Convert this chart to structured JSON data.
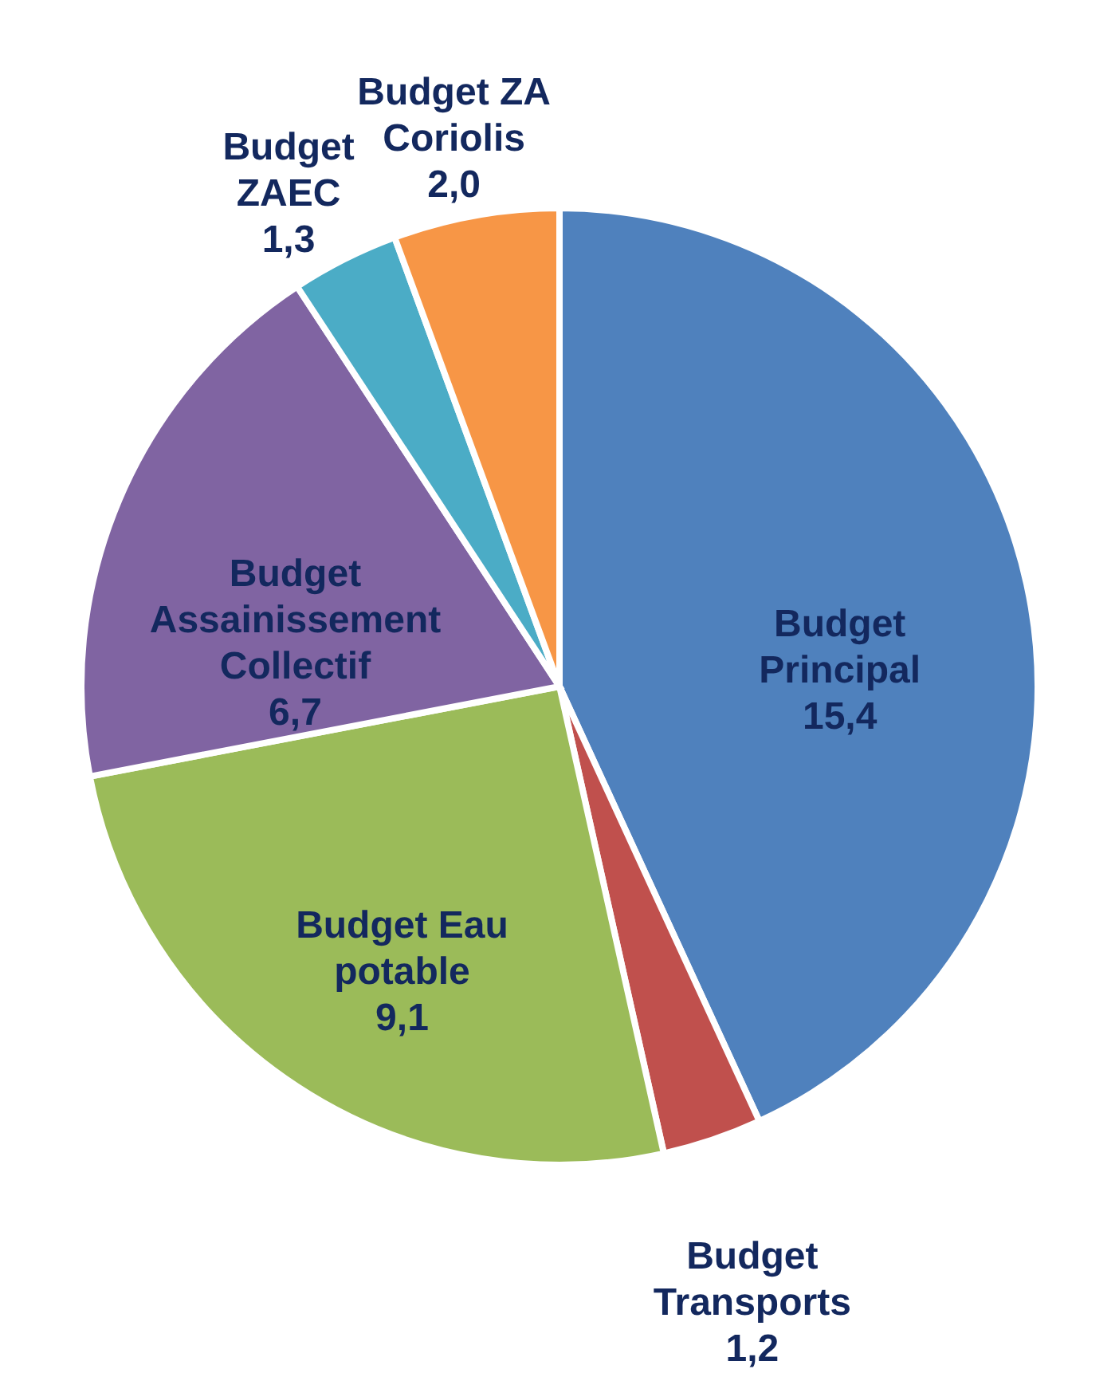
{
  "chart_data": {
    "type": "pie",
    "categories": [
      "Budget Principal",
      "Budget Transports",
      "Budget Eau potable",
      "Budget Assainissement Collectif",
      "Budget ZAEC",
      "Budget ZA Coriolis"
    ],
    "values": [
      15.4,
      1.2,
      9.1,
      6.7,
      1.3,
      2.0
    ],
    "value_labels": [
      "15,4",
      "1,2",
      "9,1",
      "6,7",
      "1,3",
      "2,0"
    ],
    "colors": [
      "#4f81bd",
      "#c0504d",
      "#9bbb59",
      "#8064a2",
      "#4bacc6",
      "#f79646"
    ],
    "legend": false
  }
}
